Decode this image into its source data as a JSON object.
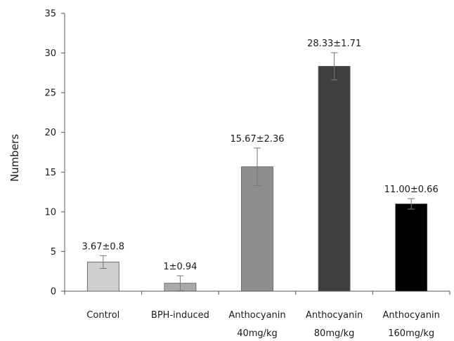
{
  "chart_data": {
    "type": "bar",
    "title": "",
    "xlabel": "",
    "ylabel": "Numbers",
    "ylim": [
      0,
      35
    ],
    "yticks": [
      0,
      5,
      10,
      15,
      20,
      25,
      30,
      35
    ],
    "grid": false,
    "legend": "none",
    "categories": [
      [
        "Control"
      ],
      [
        "BPH-induced"
      ],
      [
        "Anthocyanin",
        "40mg/kg"
      ],
      [
        "Anthocyanin",
        "80mg/kg"
      ],
      [
        "Anthocyanin",
        "160mg/kg"
      ]
    ],
    "values": [
      3.67,
      1.0,
      15.67,
      28.33,
      11.0
    ],
    "errors": [
      0.8,
      0.94,
      2.36,
      1.71,
      0.66
    ],
    "data_labels": [
      "3.67±0.8",
      "1±0.94",
      "15.67±2.36",
      "28.33±1.71",
      "11.00±0.66"
    ],
    "bar_colors": [
      "#cfcfcf",
      "#a9a9a9",
      "#8e8e8e",
      "#3f3f3f",
      "#000000"
    ]
  }
}
